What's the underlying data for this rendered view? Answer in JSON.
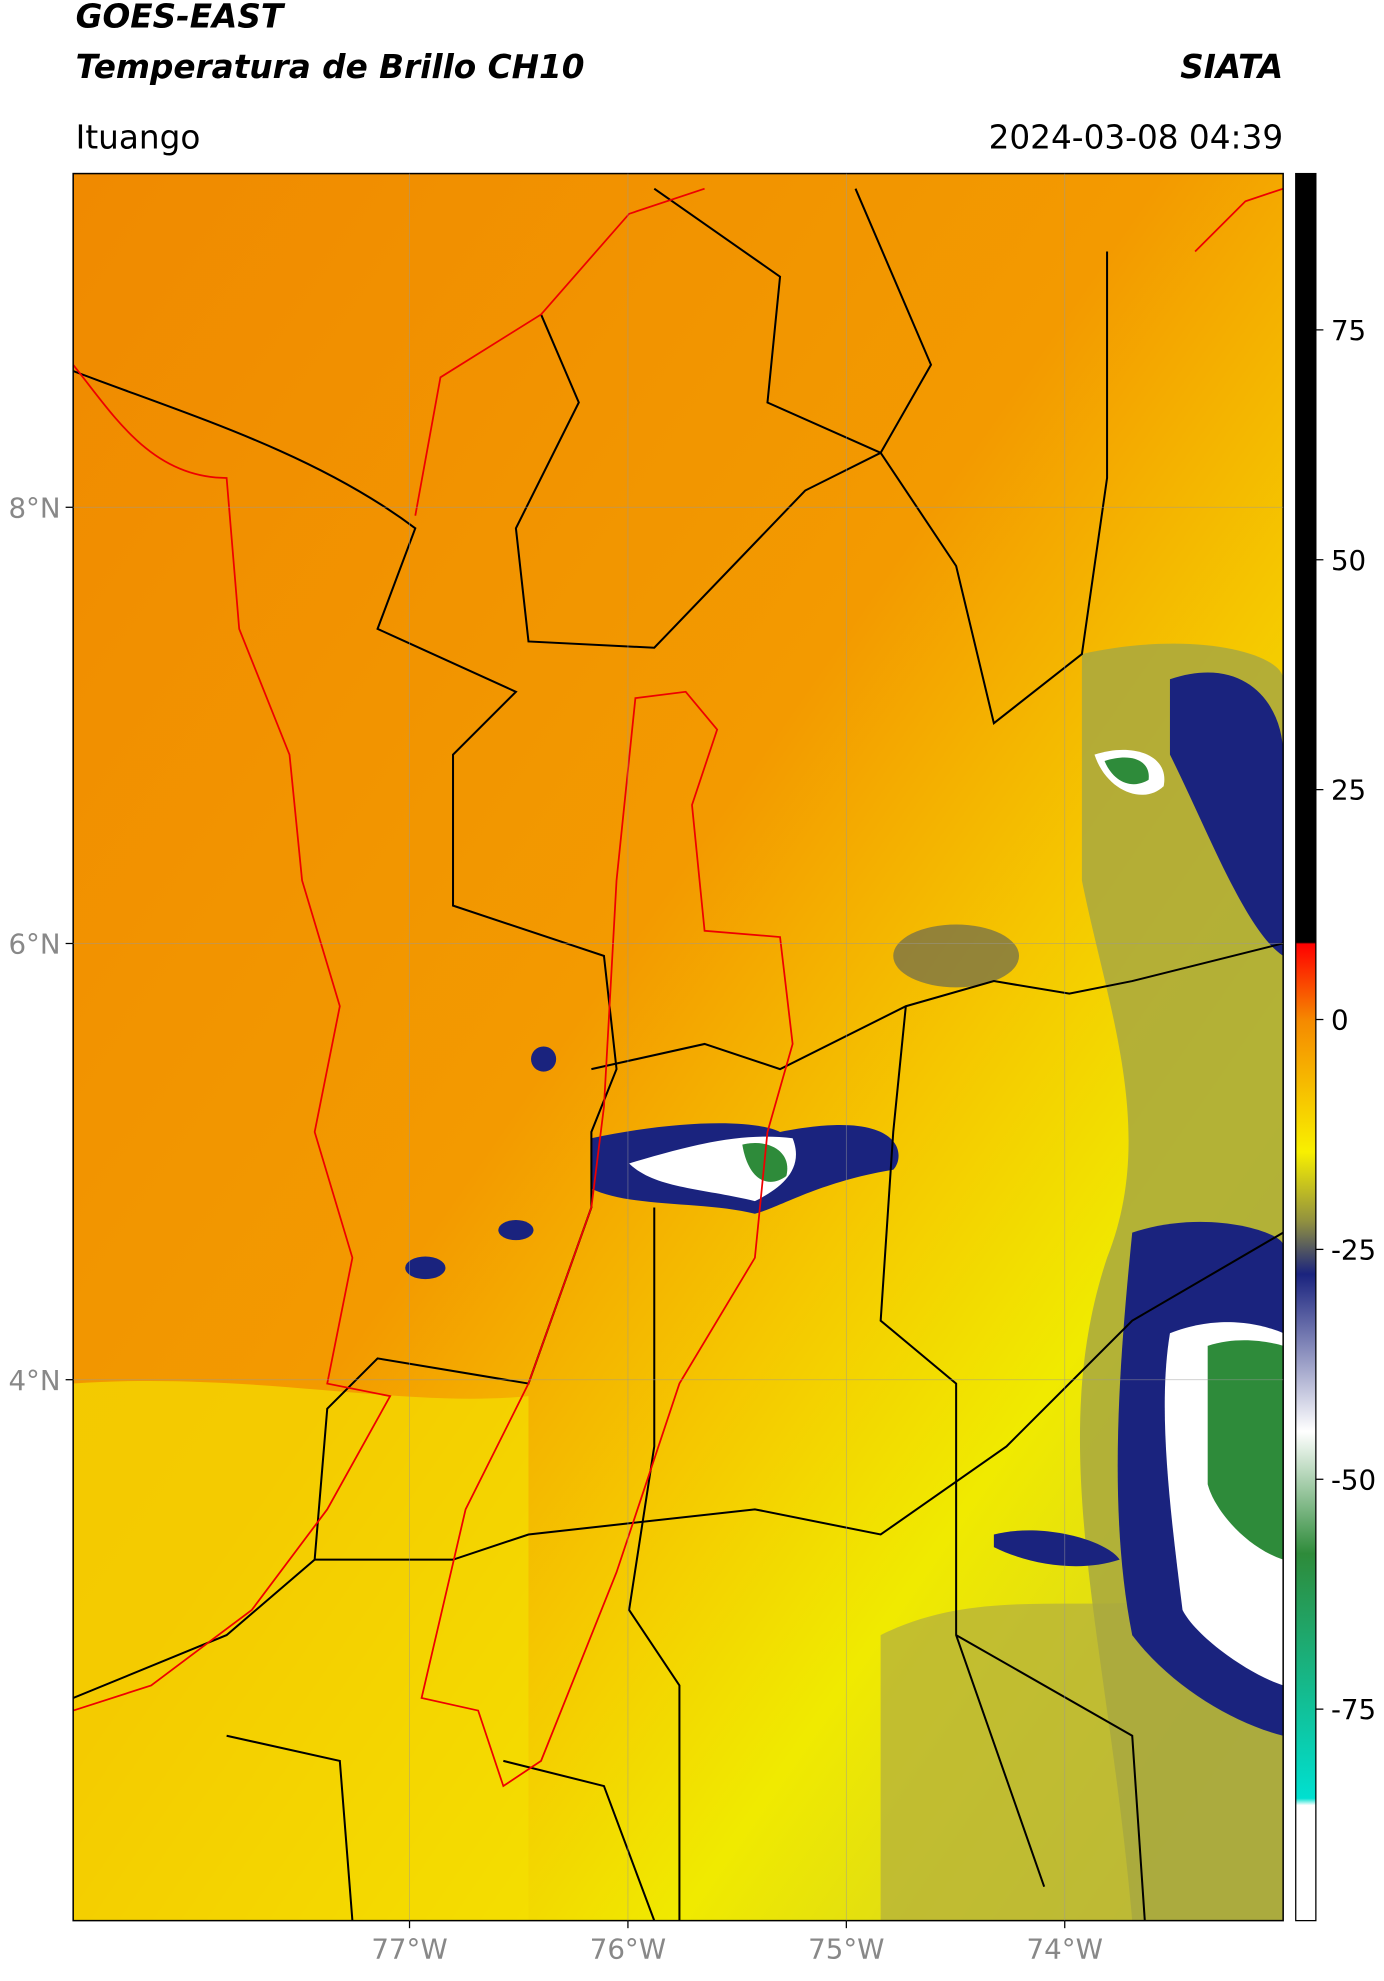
{
  "header": {
    "title": "GOES-EAST",
    "subtitle": "Temperatura de Brillo CH10",
    "source": "SIATA",
    "place": "Ituango",
    "datetime": "2024-03-08 04:39"
  },
  "map": {
    "xlim": [
      -78.54,
      -73.0
    ],
    "ylim": [
      1.52,
      9.53
    ],
    "xticks": [
      {
        "value": -77,
        "label": "77°W"
      },
      {
        "value": -76,
        "label": "76°W"
      },
      {
        "value": -75,
        "label": "75°W"
      },
      {
        "value": -74,
        "label": "74°W"
      }
    ],
    "yticks": [
      {
        "value": 4,
        "label": "4°N"
      },
      {
        "value": 6,
        "label": "6°N"
      },
      {
        "value": 8,
        "label": "8°N"
      }
    ],
    "grid": true
  },
  "colorbar": {
    "lim": [
      -98,
      92
    ],
    "ticks": [
      -75,
      -50,
      -25,
      0,
      25,
      50,
      75
    ]
  }
}
